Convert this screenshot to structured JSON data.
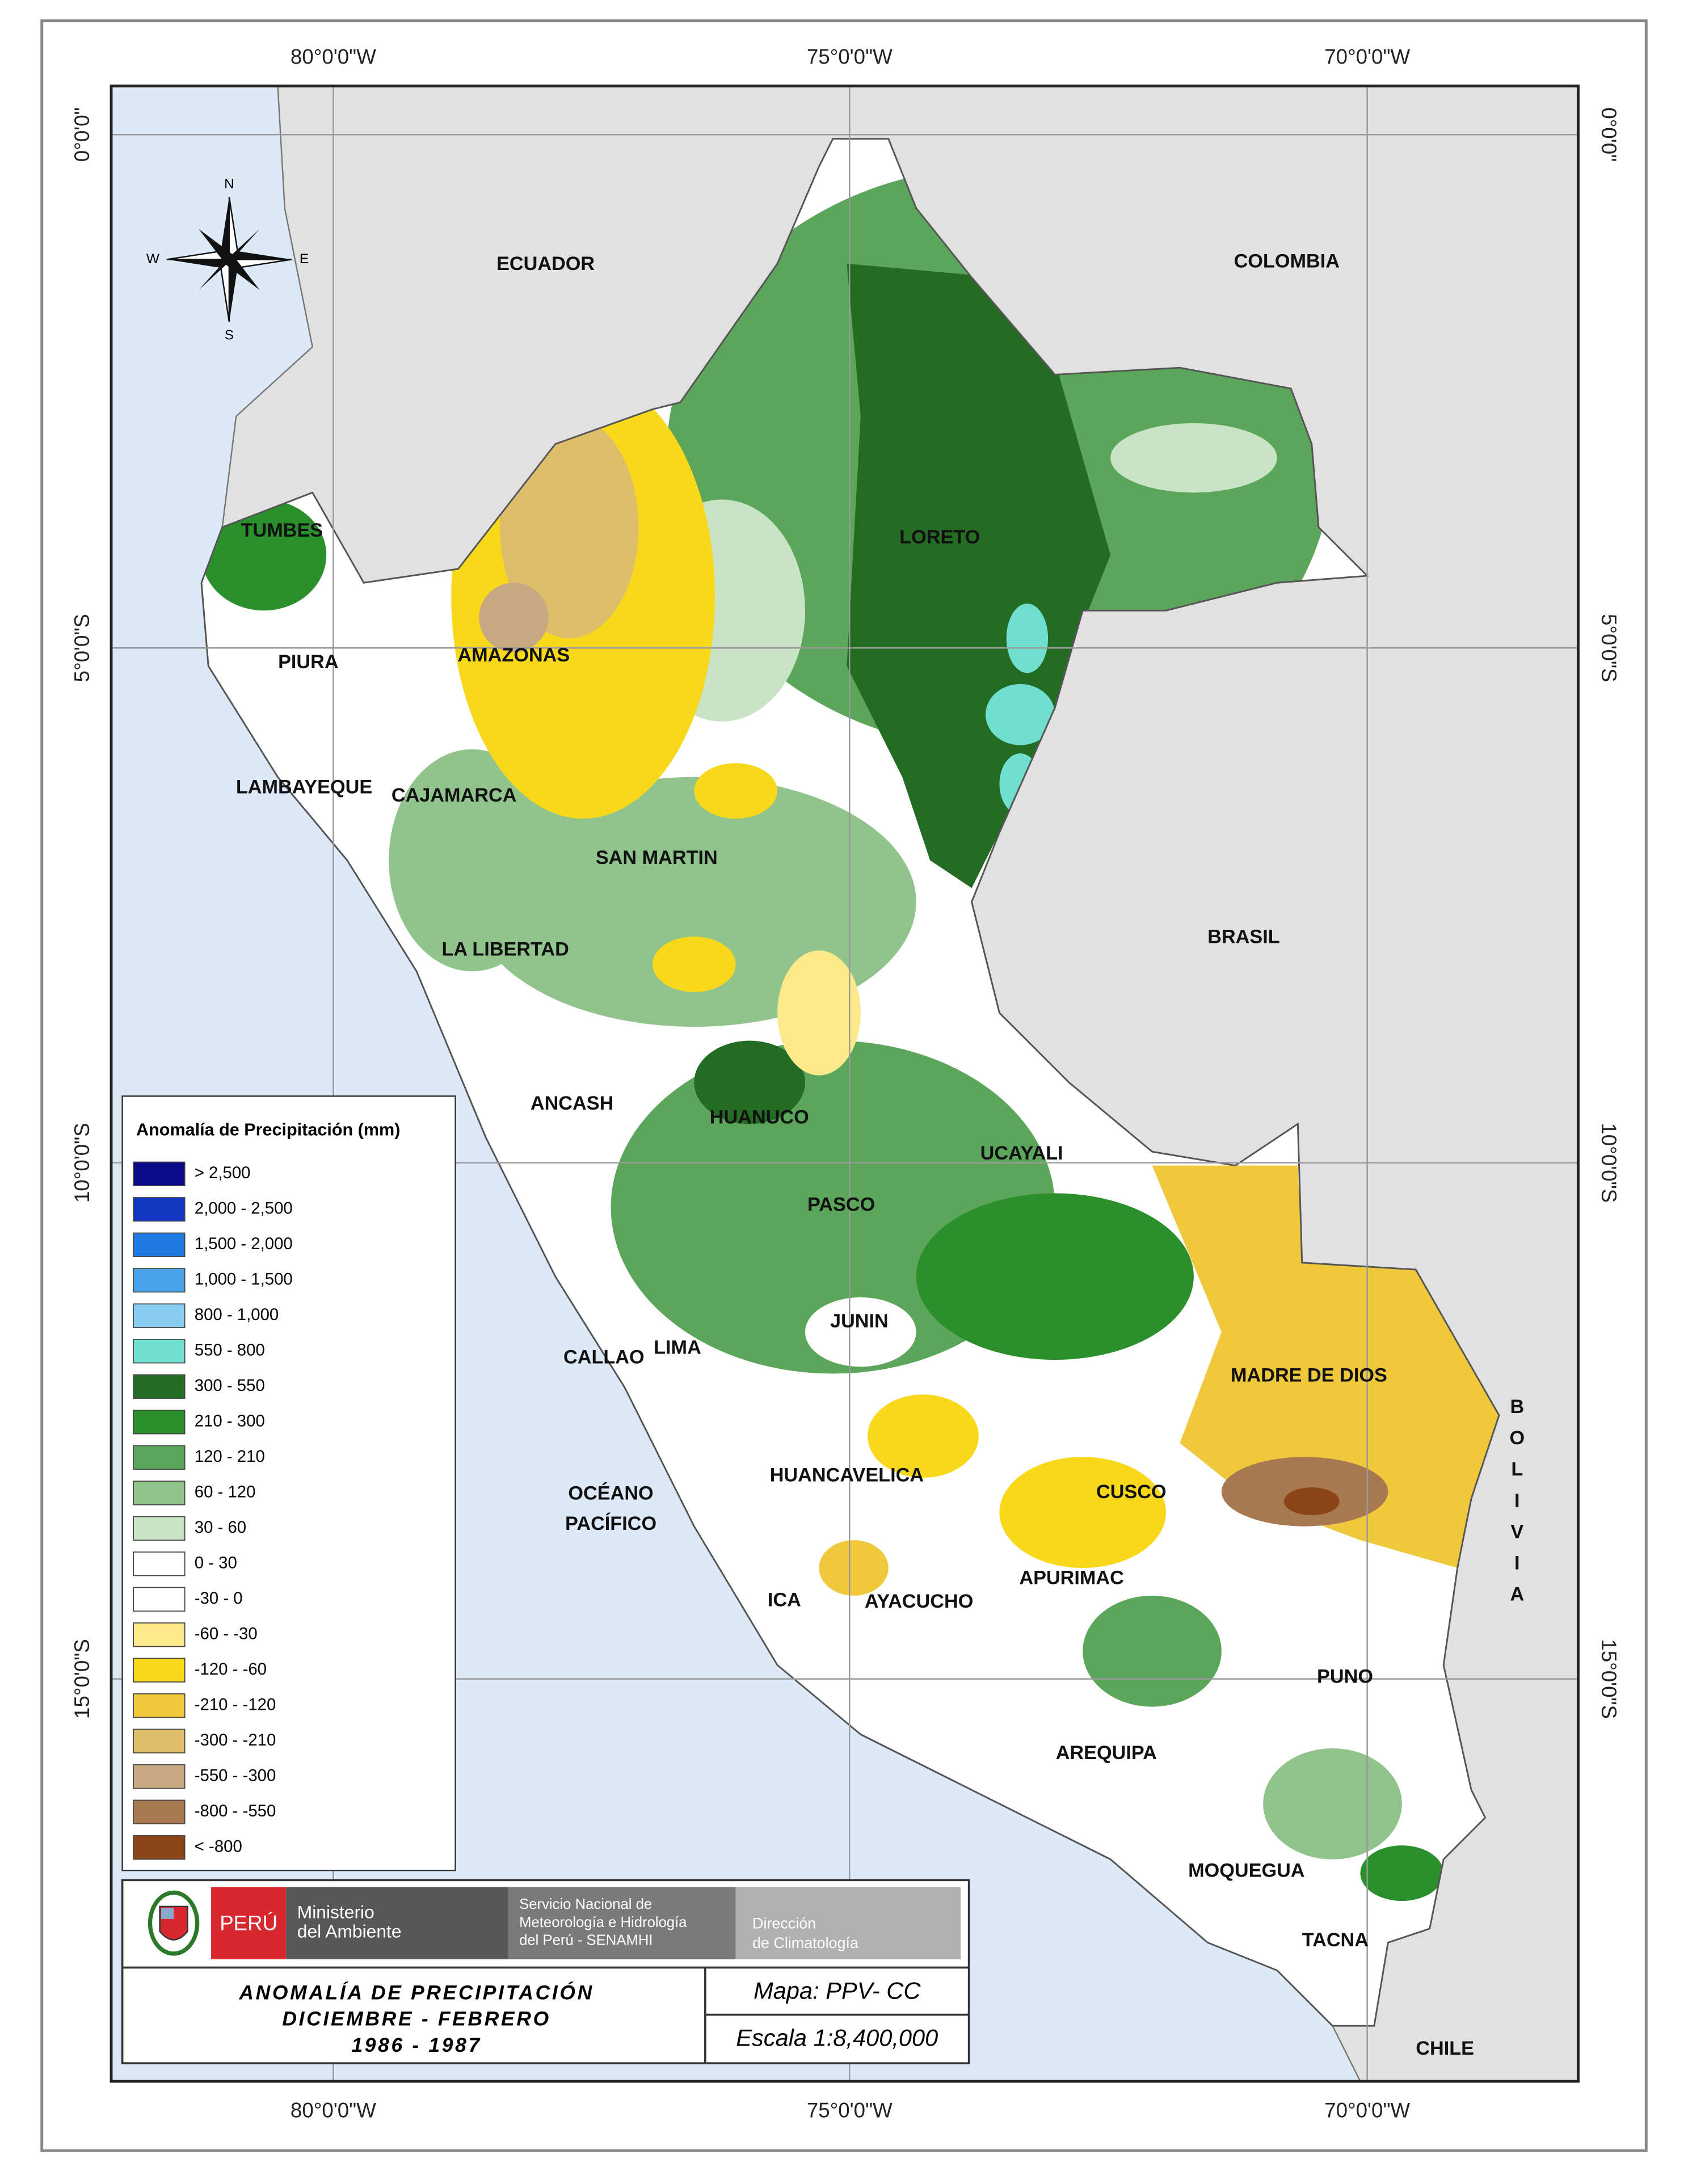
{
  "map": {
    "graticule": {
      "top": [
        "80°0'0\"W",
        "75°0'0\"W",
        "70°0'0\"W"
      ],
      "bottom": [
        "80°0'0\"W",
        "75°0'0\"W",
        "70°0'0\"W"
      ],
      "left": [
        "0°0'0\"",
        "5°0'0\"S",
        "10°0'0\"S",
        "15°0'0\"S"
      ],
      "right": [
        "0°0'0\"",
        "5°0'0\"S",
        "10°0'0\"S",
        "15°0'0\"S"
      ]
    },
    "compass": {
      "north": "N",
      "south": "S",
      "east": "E",
      "west": "W"
    },
    "countries": [
      "ECUADOR",
      "COLOMBIA",
      "BRASIL",
      "CHILE",
      "BOLIVIA"
    ],
    "ocean": [
      "OCÉANO",
      "PACÍFICO"
    ],
    "regions": [
      "TUMBES",
      "PIURA",
      "AMAZONAS",
      "LAMBAYEQUE",
      "CAJAMARCA",
      "SAN MARTIN",
      "LA LIBERTAD",
      "LORETO",
      "ANCASH",
      "HUANUCO",
      "UCAYALI",
      "PASCO",
      "JUNIN",
      "CALLAO",
      "LIMA",
      "MADRE DE DIOS",
      "HUANCAVELICA",
      "CUSCO",
      "APURIMAC",
      "ICA",
      "AYACUCHO",
      "PUNO",
      "AREQUIPA",
      "MOQUEGUA",
      "TACNA"
    ]
  },
  "legend": {
    "title": "Anomalía de Precipitación (mm)",
    "items": [
      {
        "label": "> 2,500",
        "color": "#0b0b8a"
      },
      {
        "label": "2,000 - 2,500",
        "color": "#1236c2"
      },
      {
        "label": "1,500 - 2,000",
        "color": "#1f7be2"
      },
      {
        "label": "1,000 - 1,500",
        "color": "#4aa2ea"
      },
      {
        "label": "800 - 1,000",
        "color": "#88cdf1"
      },
      {
        "label": "550 - 800",
        "color": "#70dfcf"
      },
      {
        "label": "300 - 550",
        "color": "#246b24"
      },
      {
        "label": "210 - 300",
        "color": "#2b8f2b"
      },
      {
        "label": "120 - 210",
        "color": "#5ba65b"
      },
      {
        "label": "60 - 120",
        "color": "#90c48c"
      },
      {
        "label": "30 - 60",
        "color": "#c9e4c5"
      },
      {
        "label": "0 - 30",
        "color": "#ffffff"
      },
      {
        "label": "-30 - 0",
        "color": "#ffffff"
      },
      {
        "label": "-60 - -30",
        "color": "#fbe98b"
      },
      {
        "label": "-120 - -60",
        "color": "#f7d81b"
      },
      {
        "label": "-210 - -120",
        "color": "#efc93b"
      },
      {
        "label": "-300 - -210",
        "color": "#dfbe6b"
      },
      {
        "label": "-550 - -300",
        "color": "#c8a881"
      },
      {
        "label": "-800 - -550",
        "color": "#a87851"
      },
      {
        "label": "< -800",
        "color": "#8a4415"
      }
    ]
  },
  "title_block": {
    "country": "PERÚ",
    "ministry": [
      "Ministerio",
      "del Ambiente"
    ],
    "service": [
      "Servicio Nacional de",
      "Meteorología e Hidrología",
      "del Perú - SENAMHI"
    ],
    "direction": [
      "Dirección",
      "de Climatología"
    ],
    "title": [
      "ANOMALÍA DE PRECIPITACIÓN",
      "DICIEMBRE - FEBRERO",
      "1986 - 1987"
    ],
    "map_code": "Mapa: PPV- CC",
    "scale": "Escala 1:8,400,000"
  }
}
